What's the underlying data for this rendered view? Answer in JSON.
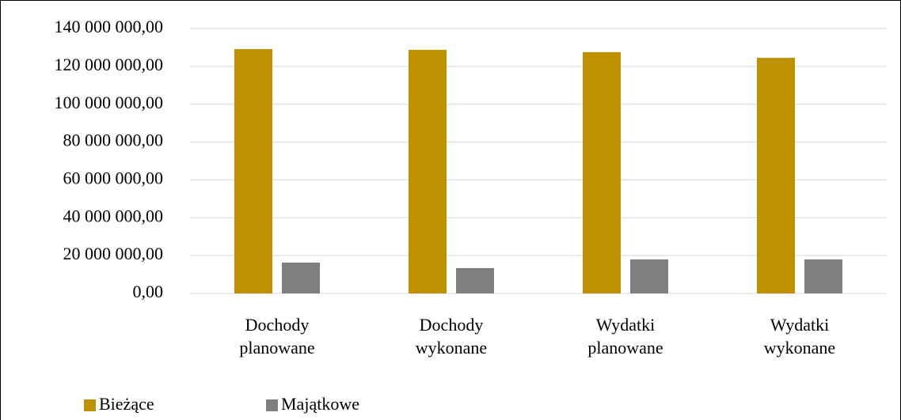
{
  "chart_data": {
    "type": "bar",
    "categories": [
      "Dochody planowane",
      "Dochody wykonane",
      "Wydatki planowane",
      "Wydatki wykonane"
    ],
    "series": [
      {
        "name": "Bieżące",
        "color": "#bf9000",
        "values": [
          129100000,
          128700000,
          127500000,
          124500000
        ]
      },
      {
        "name": "Majątkowe",
        "color": "#7f7f7f",
        "values": [
          16300000,
          13400000,
          18000000,
          18000000
        ]
      }
    ],
    "ylim": [
      0,
      140000000
    ],
    "yticks": [
      {
        "value": 0,
        "label": "0,00"
      },
      {
        "value": 20000000,
        "label": "20 000 000,00"
      },
      {
        "value": 40000000,
        "label": "40 000 000,00"
      },
      {
        "value": 60000000,
        "label": "60 000 000,00"
      },
      {
        "value": 80000000,
        "label": "80 000 000,00"
      },
      {
        "value": 100000000,
        "label": "100 000 000,00"
      },
      {
        "value": 120000000,
        "label": "120 000 000,00"
      },
      {
        "value": 140000000,
        "label": "140 000 000,00"
      }
    ],
    "grid": true,
    "legend": "bottom-left"
  }
}
